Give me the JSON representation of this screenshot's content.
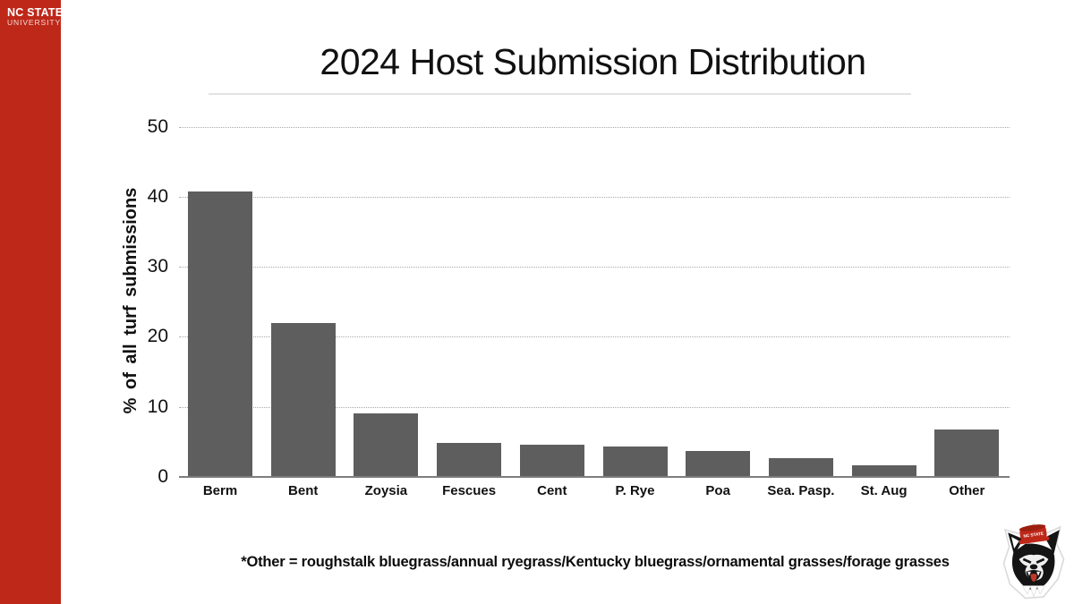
{
  "brand": {
    "line1": "NC STATE",
    "line2": "UNIVERSITY",
    "sidebar_color": "#BE2819"
  },
  "header": {
    "title": "2024 Host Submission Distribution"
  },
  "footnote": "*Other = roughstalk bluegrass/annual ryegrass/Kentucky bluegrass/ornamental grasses/forage grasses",
  "footer_logo": {
    "icon": "nc-state-wolf-head-icon"
  },
  "colors": {
    "bar": "#5E5E5E",
    "sidebar_red": "#BE2819",
    "gridline": "#a9a9a9",
    "baseline": "#7e7e7e"
  },
  "chart_data": {
    "type": "bar",
    "title": "2024 Host Submission Distribution",
    "categories": [
      "Berm",
      "Bent",
      "Zoysia",
      "Fescues",
      "Cent",
      "P. Rye",
      "Poa",
      "Sea. Pasp.",
      "St. Aug",
      "Other"
    ],
    "values": [
      40.6,
      21.9,
      9.0,
      4.7,
      4.5,
      4.2,
      3.6,
      2.6,
      1.5,
      6.7
    ],
    "xlabel": "",
    "ylabel": "% of all turf submissions",
    "ylim": [
      0,
      50
    ],
    "yticks": [
      0,
      10,
      20,
      30,
      40,
      50
    ],
    "grid": "horizontal-dotted",
    "legend": "none",
    "bar_color": "#5E5E5E"
  }
}
